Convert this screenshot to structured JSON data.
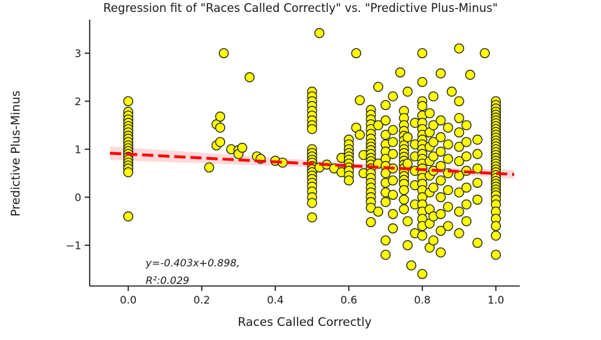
{
  "chart_data": {
    "type": "scatter",
    "title": "Regression fit of \"Races Called Correctly\" vs. \"Predictive Plus-Minus\"",
    "xlabel": "Races Called Correctly",
    "ylabel": "Predictive Plus-Minus",
    "xlim": [
      -0.105,
      1.065
    ],
    "ylim": [
      -1.85,
      3.7
    ],
    "xticks": [
      0.0,
      0.2,
      0.4,
      0.6,
      0.8,
      1.0
    ],
    "xtick_labels": [
      "0.0",
      "0.2",
      "0.4",
      "0.6",
      "0.8",
      "1.0"
    ],
    "yticks": [
      -1,
      0,
      1,
      2,
      3
    ],
    "ytick_labels": [
      "−1",
      "0",
      "1",
      "2",
      "3"
    ],
    "grid": false,
    "legend": "none",
    "marker": {
      "fill": "#ffff00",
      "edge": "#222222",
      "radius": 6.5,
      "edge_width": 1.3
    },
    "regression": {
      "slope": -0.403,
      "intercept": 0.898,
      "r_squared": 0.029,
      "line_color": "#ff0000",
      "line_style": "dashed",
      "line_width": 4,
      "x_start": -0.05,
      "x_end": 1.05,
      "band_color": "#ff0000",
      "band_opacity": 0.15,
      "band": {
        "x": [
          -0.05,
          0.1,
          0.25,
          0.4,
          0.55,
          0.7,
          0.85,
          1.05
        ],
        "upper": [
          1.061,
          0.981,
          0.901,
          0.821,
          0.741,
          0.661,
          0.62,
          0.566
        ],
        "lower": [
          0.776,
          0.735,
          0.694,
          0.653,
          0.612,
          0.571,
          0.491,
          0.385
        ]
      }
    },
    "annotation": {
      "line1": "y=-0.403x+0.898,",
      "line2": "R²:0.029"
    },
    "points_by_x": [
      {
        "x": 0.0,
        "y": [
          2.0,
          1.78,
          1.7,
          1.62,
          1.55,
          1.48,
          1.42,
          1.35,
          1.28,
          1.22,
          1.15,
          1.08,
          1.02,
          0.96,
          0.9,
          0.84,
          0.78,
          0.72,
          0.66,
          0.6,
          0.52,
          -0.4
        ]
      },
      {
        "x": 0.22,
        "y": [
          0.62
        ]
      },
      {
        "x": 0.24,
        "y": [
          1.52,
          1.08
        ]
      },
      {
        "x": 0.25,
        "y": [
          1.68,
          1.45,
          1.15
        ]
      },
      {
        "x": 0.26,
        "y": [
          3.0
        ]
      },
      {
        "x": 0.28,
        "y": [
          1.0
        ]
      },
      {
        "x": 0.3,
        "y": [
          0.98,
          0.9
        ]
      },
      {
        "x": 0.31,
        "y": [
          1.03
        ]
      },
      {
        "x": 0.33,
        "y": [
          2.5
        ]
      },
      {
        "x": 0.35,
        "y": [
          0.85
        ]
      },
      {
        "x": 0.36,
        "y": [
          0.8
        ]
      },
      {
        "x": 0.4,
        "y": [
          0.76
        ]
      },
      {
        "x": 0.42,
        "y": [
          0.72
        ]
      },
      {
        "x": 0.5,
        "y": [
          2.2,
          2.1,
          2.0,
          1.9,
          1.8,
          1.7,
          1.6,
          1.5,
          1.42,
          1.0,
          0.92,
          0.85,
          0.78,
          0.72,
          0.65,
          0.58,
          0.52,
          0.45,
          0.38,
          0.3,
          0.22,
          0.12,
          0.0,
          -0.12,
          -0.42
        ]
      },
      {
        "x": 0.52,
        "y": [
          3.42,
          0.62
        ]
      },
      {
        "x": 0.54,
        "y": [
          0.68
        ]
      },
      {
        "x": 0.56,
        "y": [
          0.6
        ]
      },
      {
        "x": 0.58,
        "y": [
          0.82,
          0.52
        ]
      },
      {
        "x": 0.6,
        "y": [
          1.2,
          1.1,
          1.0,
          0.92,
          0.85,
          0.78,
          0.7,
          0.62,
          0.55,
          0.45,
          0.35
        ]
      },
      {
        "x": 0.62,
        "y": [
          3.0,
          1.45
        ]
      },
      {
        "x": 0.63,
        "y": [
          2.02,
          1.3
        ]
      },
      {
        "x": 0.64,
        "y": [
          0.88,
          0.5
        ]
      },
      {
        "x": 0.66,
        "y": [
          1.82,
          1.72,
          1.62,
          1.52,
          1.42,
          1.32,
          1.22,
          1.12,
          1.05,
          0.98,
          0.9,
          0.82,
          0.75,
          0.68,
          0.6,
          0.5,
          0.4,
          0.3,
          0.2,
          0.1,
          0.0,
          -0.1,
          -0.22,
          -0.52
        ]
      },
      {
        "x": 0.68,
        "y": [
          2.3,
          1.5,
          0.7,
          -0.3
        ]
      },
      {
        "x": 0.7,
        "y": [
          1.92,
          1.6,
          1.3,
          1.1,
          0.95,
          0.8,
          0.65,
          0.5,
          0.3,
          0.1,
          -0.1,
          -0.9,
          -1.2
        ]
      },
      {
        "x": 0.72,
        "y": [
          2.1,
          1.4,
          1.15,
          0.9,
          0.6,
          0.35,
          0.05,
          -0.35,
          -0.65
        ]
      },
      {
        "x": 0.74,
        "y": [
          2.6
        ]
      },
      {
        "x": 0.75,
        "y": [
          1.8,
          1.65,
          1.5,
          1.38,
          1.28,
          1.18,
          1.08,
          1.0,
          0.92,
          0.84,
          0.76,
          0.68,
          0.6,
          0.52,
          0.44,
          0.36,
          0.28,
          0.15,
          -0.05,
          -0.25
        ]
      },
      {
        "x": 0.76,
        "y": [
          2.2,
          1.25,
          0.7,
          -0.5,
          -1.0
        ]
      },
      {
        "x": 0.77,
        "y": [
          -1.42
        ]
      },
      {
        "x": 0.78,
        "y": [
          1.55,
          1.1,
          0.85,
          0.55,
          0.25,
          -0.15,
          -0.75
        ]
      },
      {
        "x": 0.8,
        "y": [
          3.0,
          2.4,
          2.0,
          1.9,
          1.7,
          1.55,
          1.42,
          1.3,
          1.2,
          1.1,
          1.0,
          0.9,
          0.8,
          0.7,
          0.6,
          0.5,
          0.4,
          0.28,
          0.15,
          0.0,
          -0.15,
          -0.3,
          -0.45,
          -0.6,
          -0.8,
          -1.6
        ]
      },
      {
        "x": 0.82,
        "y": [
          1.75,
          1.35,
          1.05,
          0.75,
          0.45,
          0.1,
          -0.25,
          -0.55,
          -1.05
        ]
      },
      {
        "x": 0.83,
        "y": [
          2.1,
          1.5,
          1.15,
          0.85,
          0.55,
          0.2,
          -0.4,
          -0.9
        ]
      },
      {
        "x": 0.85,
        "y": [
          2.58,
          1.6,
          1.25,
          0.95,
          0.65,
          0.35,
          0.0,
          -0.35,
          -0.7,
          -1.15
        ]
      },
      {
        "x": 0.87,
        "y": [
          1.45,
          1.1,
          0.8,
          0.5,
          0.15,
          -0.2,
          -0.6
        ]
      },
      {
        "x": 0.88,
        "y": [
          2.2
        ]
      },
      {
        "x": 0.9,
        "y": [
          3.1,
          2.0,
          1.65,
          1.35,
          1.05,
          0.75,
          0.45,
          0.1,
          -0.3,
          -0.75
        ]
      },
      {
        "x": 0.92,
        "y": [
          1.5,
          1.15,
          0.85,
          0.55,
          0.2,
          -0.15,
          -0.5
        ]
      },
      {
        "x": 0.93,
        "y": [
          2.55
        ]
      },
      {
        "x": 0.95,
        "y": [
          1.2,
          0.9,
          0.6,
          0.3,
          -0.05,
          -0.95
        ]
      },
      {
        "x": 0.97,
        "y": [
          3.0
        ]
      },
      {
        "x": 1.0,
        "y": [
          2.0,
          1.92,
          1.85,
          1.78,
          1.72,
          1.66,
          1.6,
          1.54,
          1.48,
          1.42,
          1.36,
          1.3,
          1.24,
          1.18,
          1.12,
          1.06,
          1.0,
          0.94,
          0.88,
          0.82,
          0.76,
          0.7,
          0.64,
          0.58,
          0.52,
          0.46,
          0.4,
          0.34,
          0.28,
          0.22,
          0.16,
          0.1,
          0.04,
          -0.05,
          -0.15,
          -0.3,
          -0.45,
          -0.6,
          -0.8,
          -1.2
        ]
      }
    ]
  }
}
